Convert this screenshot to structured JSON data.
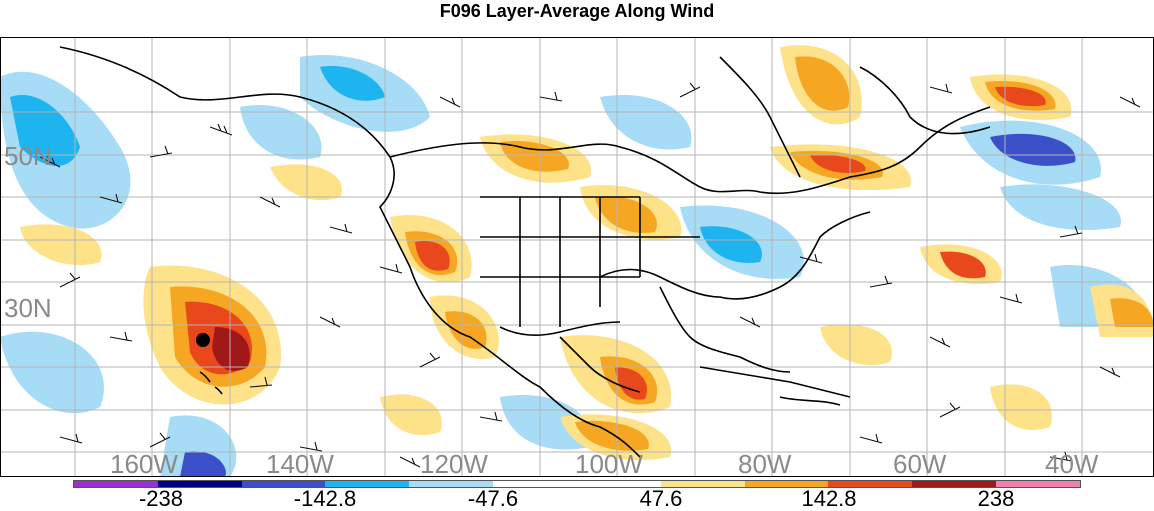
{
  "title": "F096 Layer-Average Along Wind",
  "map": {
    "lat_labels": [
      "50N",
      "30N"
    ],
    "lon_labels": [
      "160W",
      "140W",
      "120W",
      "100W",
      "80W",
      "60W",
      "40W"
    ],
    "projection": "cylindrical",
    "region": "North America / North Pacific / North Atlantic",
    "feature": "wind barbs over shaded along-wind anomalies",
    "marker": "black dot near Hawaii"
  },
  "colorbar": {
    "colors": [
      "#9b30d0",
      "#00008b",
      "#3a4fc8",
      "#1eb4f0",
      "#a6dcf5",
      "#ffffff",
      "#ffffff",
      "#fde28a",
      "#f5a623",
      "#e8481c",
      "#a01818",
      "#f080b0"
    ],
    "labels": [
      "-238",
      "-142.8",
      "-47.6",
      "47.6",
      "142.8",
      "238"
    ]
  }
}
